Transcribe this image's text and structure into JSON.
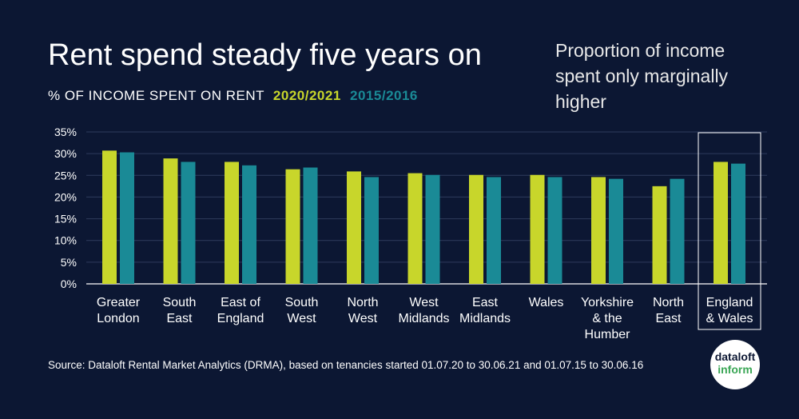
{
  "header": {
    "title": "Rent spend steady five years on",
    "subtitle_label": "% OF INCOME SPENT ON RENT",
    "annotation": "Proportion of income spent only marginally higher"
  },
  "footer": {
    "source": "Source: Dataloft Rental Market Analytics (DRMA), based on tenancies started 01.07.20 to 30.06.21 and 01.07.15 to 30.06.16"
  },
  "logo": {
    "line1": "dataloft",
    "line2": "inform"
  },
  "colors": {
    "background": "#0c1733",
    "series_2020": "#c8d62b",
    "series_2015": "#1a8a96",
    "text": "#ffffff"
  },
  "chart_data": {
    "type": "bar",
    "title": "Rent spend steady five years on",
    "ylabel": "% of income spent on rent",
    "ylim": [
      0,
      35
    ],
    "yticks": [
      "0%",
      "5%",
      "10%",
      "15%",
      "20%",
      "25%",
      "30%",
      "35%"
    ],
    "categories": [
      [
        "Greater",
        "London"
      ],
      [
        "South",
        "East"
      ],
      [
        "East of",
        "England"
      ],
      [
        "South",
        "West"
      ],
      [
        "North",
        "West"
      ],
      [
        "West",
        "Midlands"
      ],
      [
        "East",
        "Midlands"
      ],
      [
        "Wales"
      ],
      [
        "Yorkshire",
        "& the",
        "Humber"
      ],
      [
        "North",
        "East"
      ],
      [
        "England",
        "& Wales"
      ]
    ],
    "highlighted_category": "England & Wales",
    "series": [
      {
        "name": "2020/2021",
        "color": "#c8d62b",
        "values": [
          30.7,
          28.9,
          28.1,
          26.4,
          25.9,
          25.5,
          25.1,
          25.1,
          24.6,
          22.5,
          28.1
        ]
      },
      {
        "name": "2015/2016",
        "color": "#1a8a96",
        "values": [
          30.3,
          28.1,
          27.3,
          26.8,
          24.6,
          25.1,
          24.6,
          24.6,
          24.2,
          24.2,
          27.7
        ]
      }
    ]
  }
}
